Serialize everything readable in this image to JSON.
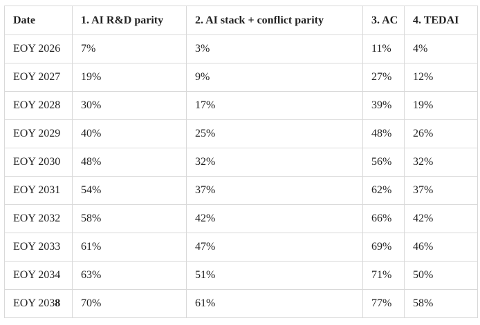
{
  "chart_data": {
    "type": "table",
    "columns": [
      "Date",
      "1. AI R&D parity",
      "2. AI stack + conflict parity",
      "3. AC",
      "4. TEDAI"
    ],
    "rows": [
      [
        "EOY 2026",
        "7%",
        "3%",
        "11%",
        "4%"
      ],
      [
        "EOY 2027",
        "19%",
        "9%",
        "27%",
        "12%"
      ],
      [
        "EOY 2028",
        "30%",
        "17%",
        "39%",
        "19%"
      ],
      [
        "EOY 2029",
        "40%",
        "25%",
        "48%",
        "26%"
      ],
      [
        "EOY 2030",
        "48%",
        "32%",
        "56%",
        "32%"
      ],
      [
        "EOY 2031",
        "54%",
        "37%",
        "62%",
        "37%"
      ],
      [
        "EOY 2032",
        "58%",
        "42%",
        "66%",
        "42%"
      ],
      [
        "EOY 2033",
        "61%",
        "47%",
        "69%",
        "46%"
      ],
      [
        "EOY 2034",
        "63%",
        "51%",
        "71%",
        "50%"
      ],
      [
        "EOY 2038",
        "70%",
        "61%",
        "77%",
        "58%"
      ]
    ],
    "layout": {
      "grid": true,
      "header_row": true
    }
  },
  "display": {
    "last_date_prefix": "EOY 203",
    "last_date_bold": "8"
  },
  "colors": {
    "border": "#d9d9d9",
    "text": "#222222",
    "background": "#ffffff"
  }
}
